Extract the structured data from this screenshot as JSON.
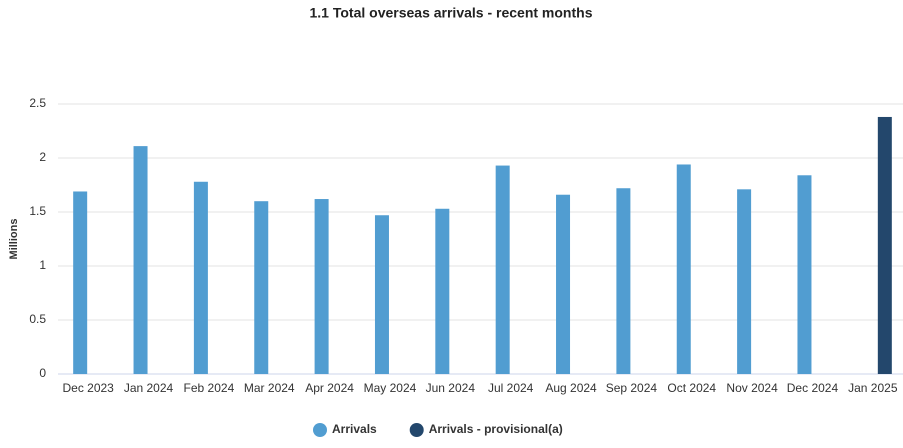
{
  "chart_data": {
    "type": "bar",
    "title": "1.1 Total overseas arrivals - recent months",
    "y_label": "Millions",
    "categories": [
      "Dec 2023",
      "Jan 2024",
      "Feb 2024",
      "Mar 2024",
      "Apr 2024",
      "May 2024",
      "Jun 2024",
      "Jul 2024",
      "Aug 2024",
      "Sep 2024",
      "Oct 2024",
      "Nov 2024",
      "Dec 2024",
      "Jan 2025"
    ],
    "series": [
      {
        "name": "Arrivals",
        "color": "#519dd1",
        "values": [
          1.69,
          2.11,
          1.78,
          1.6,
          1.62,
          1.47,
          1.53,
          1.93,
          1.66,
          1.72,
          1.94,
          1.71,
          1.84,
          null
        ]
      },
      {
        "name": "Arrivals - provisional(a)",
        "color": "#23476c",
        "values": [
          null,
          null,
          null,
          null,
          null,
          null,
          null,
          null,
          null,
          null,
          null,
          null,
          null,
          2.38
        ]
      }
    ],
    "ylim": [
      0,
      2.5
    ],
    "yticks": [
      0,
      0.5,
      1,
      1.5,
      2,
      2.5
    ],
    "grid": true,
    "legend": "bottom"
  }
}
